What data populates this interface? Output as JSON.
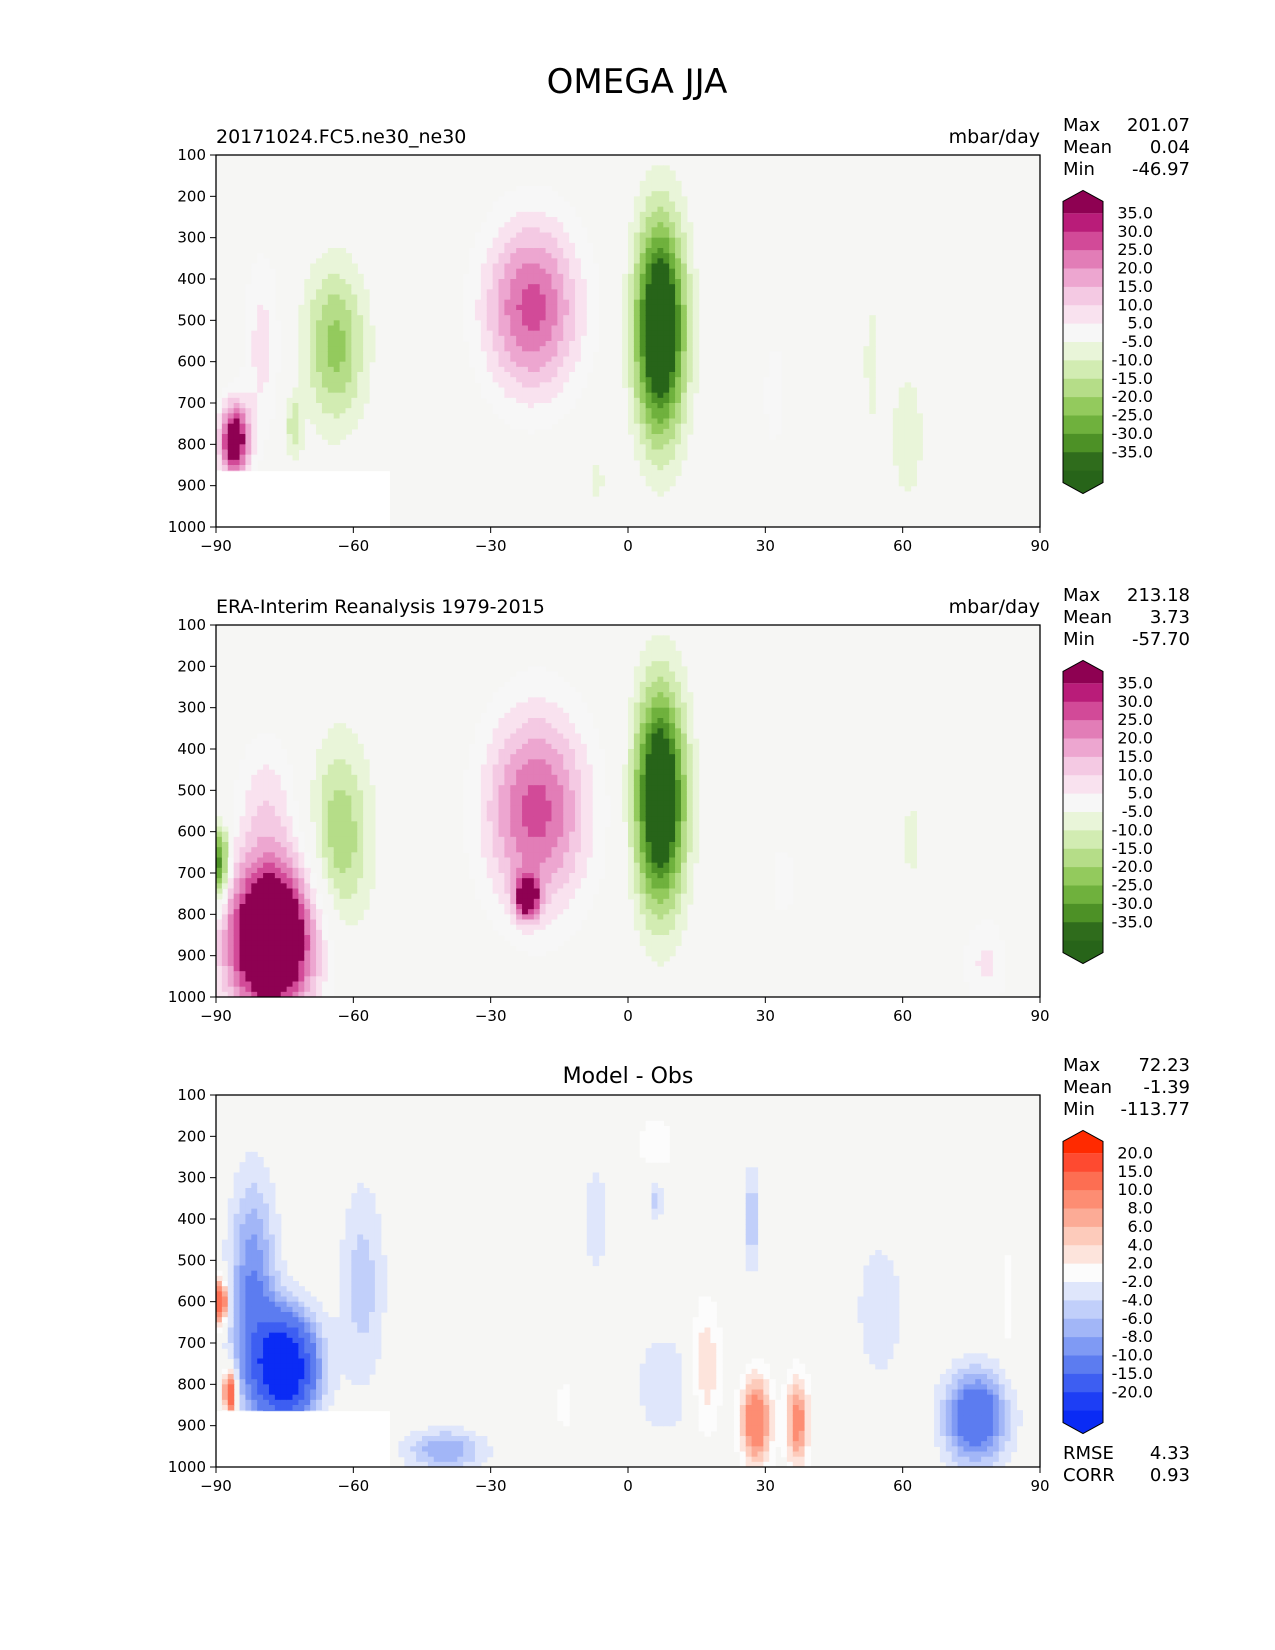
{
  "chart_data": {
    "type": "heatmap",
    "suptitle": "OMEGA JJA",
    "x_ticks": [
      "−90",
      "−60",
      "−30",
      "0",
      "30",
      "60",
      "90"
    ],
    "y_ticks": [
      "100",
      "200",
      "300",
      "400",
      "500",
      "600",
      "700",
      "800",
      "900",
      "1000"
    ],
    "xlim": [
      -90,
      90
    ],
    "ylim": [
      1000,
      100
    ],
    "panels": [
      {
        "id": "model",
        "title_left": "20171024.FC5.ne30_ne30",
        "title_center": "",
        "units": "mbar/day",
        "stats": [
          {
            "label": "Max",
            "value": "201.07"
          },
          {
            "label": "Mean",
            "value": "0.04"
          },
          {
            "label": "Min",
            "value": "-46.97"
          }
        ],
        "extra_stats": [],
        "levels": [
          "35.0",
          "30.0",
          "25.0",
          "20.0",
          "15.0",
          "10.0",
          "5.0",
          "-5.0",
          "-10.0",
          "-15.0",
          "-20.0",
          "-25.0",
          "-30.0",
          "-35.0"
        ],
        "colors": [
          "#8e0152",
          "#b91c79",
          "#d24a98",
          "#e27db7",
          "#eda6d0",
          "#f4c9e3",
          "#f9e2ef",
          "#f7f7f7",
          "#e9f5d9",
          "#d2ecb2",
          "#b5dd88",
          "#93ca5d",
          "#6fb13d",
          "#4d9126",
          "#2f6c1c",
          "#276419"
        ],
        "features": [
          {
            "x": -21,
            "p": 470,
            "rx": 13,
            "rp": 260,
            "v": 32
          },
          {
            "x": 7,
            "p": 520,
            "rx": 6.5,
            "rp": 310,
            "v": -52
          },
          {
            "x": -64,
            "p": 560,
            "rx": 8,
            "rp": 230,
            "v": -22
          },
          {
            "x": -80,
            "p": 560,
            "rx": 5,
            "rp": 280,
            "v": 12
          },
          {
            "x": -86,
            "p": 790,
            "rx": 4,
            "rp": 110,
            "v": 45
          },
          {
            "x": 32,
            "p": 680,
            "rx": 4,
            "rp": 220,
            "v": 7
          },
          {
            "x": 61,
            "p": 780,
            "rx": 5,
            "rp": 230,
            "v": -8
          },
          {
            "x": 53,
            "p": 600,
            "rx": 2,
            "rp": 240,
            "v": -7
          },
          {
            "x": -7,
            "p": 890,
            "rx": 2,
            "rp": 60,
            "v": -9
          },
          {
            "x": -73,
            "p": 760,
            "rx": 2,
            "rp": 90,
            "v": -14
          }
        ],
        "mask": {
          "x_max": -52,
          "p_min": 865
        }
      },
      {
        "id": "obs",
        "title_left": "ERA-Interim Reanalysis 1979-2015",
        "title_center": "",
        "units": "mbar/day",
        "stats": [
          {
            "label": "Max",
            "value": "213.18"
          },
          {
            "label": "Mean",
            "value": "3.73"
          },
          {
            "label": "Min",
            "value": "-57.70"
          }
        ],
        "extra_stats": [],
        "levels": [
          "35.0",
          "30.0",
          "25.0",
          "20.0",
          "15.0",
          "10.0",
          "5.0",
          "-5.0",
          "-10.0",
          "-15.0",
          "-20.0",
          "-25.0",
          "-30.0",
          "-35.0"
        ],
        "colors": [
          "#8e0152",
          "#b91c79",
          "#d24a98",
          "#e27db7",
          "#eda6d0",
          "#f4c9e3",
          "#f9e2ef",
          "#f7f7f7",
          "#e9f5d9",
          "#d2ecb2",
          "#b5dd88",
          "#93ca5d",
          "#6fb13d",
          "#4d9126",
          "#2f6c1c",
          "#276419"
        ],
        "features": [
          {
            "x": -20,
            "p": 550,
            "rx": 14,
            "rp": 300,
            "v": 32
          },
          {
            "x": -22,
            "p": 760,
            "rx": 3,
            "rp": 60,
            "v": 38
          },
          {
            "x": 7,
            "p": 520,
            "rx": 6.5,
            "rp": 310,
            "v": -52
          },
          {
            "x": -63,
            "p": 620,
            "rx": 8,
            "rp": 280,
            "v": -20
          },
          {
            "x": -78,
            "p": 860,
            "rx": 12,
            "rp": 230,
            "v": 60
          },
          {
            "x": -79,
            "p": 520,
            "rx": 8,
            "rp": 200,
            "v": 12
          },
          {
            "x": -89,
            "p": 680,
            "rx": 2,
            "rp": 110,
            "v": -40
          },
          {
            "x": 34,
            "p": 720,
            "rx": 5,
            "rp": 150,
            "v": 7
          },
          {
            "x": 62,
            "p": 620,
            "rx": 3,
            "rp": 140,
            "v": -7
          },
          {
            "x": 78,
            "p": 920,
            "rx": 6,
            "rp": 140,
            "v": 11
          }
        ],
        "mask": null
      },
      {
        "id": "diff",
        "title_left": "",
        "title_center": "Model - Obs",
        "units": "",
        "stats": [
          {
            "label": "Max",
            "value": "72.23"
          },
          {
            "label": "Mean",
            "value": "-1.39"
          },
          {
            "label": "Min",
            "value": "-113.77"
          }
        ],
        "extra_stats": [
          {
            "label": "RMSE",
            "value": "4.33"
          },
          {
            "label": "CORR",
            "value": "0.93"
          }
        ],
        "levels": [
          "20.0",
          "15.0",
          "10.0",
          "8.0",
          "6.0",
          "4.0",
          "2.0",
          "-2.0",
          "-4.0",
          "-6.0",
          "-8.0",
          "-10.0",
          "-15.0",
          "-20.0"
        ],
        "colors": [
          "#ff2a00",
          "#fe4a30",
          "#fd6e52",
          "#fd8d73",
          "#fcab96",
          "#fdcbbb",
          "#fde4dc",
          "#fcfcfc",
          "#dfe6fb",
          "#c1cffa",
          "#a2b6f7",
          "#7f9af4",
          "#5c7cf0",
          "#3d5ef2",
          "#1d3ef5",
          "#0a2bf5"
        ],
        "features": [
          {
            "x": -75,
            "p": 760,
            "rx": 8,
            "rp": 150,
            "v": -28
          },
          {
            "x": -82,
            "p": 560,
            "rx": 6,
            "rp": 300,
            "v": -10
          },
          {
            "x": -58,
            "p": 560,
            "rx": 6,
            "rp": 300,
            "v": -5
          },
          {
            "x": -87,
            "p": 820,
            "rx": 1.5,
            "rp": 60,
            "v": 22
          },
          {
            "x": -89,
            "p": 600,
            "rx": 1.5,
            "rp": 60,
            "v": 22
          },
          {
            "x": -40,
            "p": 960,
            "rx": 10,
            "rp": 60,
            "v": -8
          },
          {
            "x": 28,
            "p": 890,
            "rx": 4,
            "rp": 130,
            "v": 14
          },
          {
            "x": 37,
            "p": 890,
            "rx": 3,
            "rp": 130,
            "v": 12
          },
          {
            "x": 17,
            "p": 760,
            "rx": 4,
            "rp": 200,
            "v": 6
          },
          {
            "x": 6,
            "p": 220,
            "rx": 6,
            "rp": 110,
            "v": 3
          },
          {
            "x": 6,
            "p": 350,
            "rx": 2,
            "rp": 60,
            "v": -5
          },
          {
            "x": -7,
            "p": 400,
            "rx": 4,
            "rp": 200,
            "v": -3
          },
          {
            "x": 27,
            "p": 400,
            "rx": 2,
            "rp": 150,
            "v": -6
          },
          {
            "x": 55,
            "p": 620,
            "rx": 8,
            "rp": 260,
            "v": -3
          },
          {
            "x": 76,
            "p": 880,
            "rx": 8,
            "rp": 130,
            "v": -15
          },
          {
            "x": 83,
            "p": 600,
            "rx": 2,
            "rp": 200,
            "v": 3
          },
          {
            "x": 8,
            "p": 800,
            "rx": 8,
            "rp": 150,
            "v": -4
          },
          {
            "x": -14,
            "p": 850,
            "rx": 2,
            "rp": 70,
            "v": 4
          }
        ],
        "mask": {
          "x_max": -52,
          "p_min": 865
        }
      }
    ]
  }
}
